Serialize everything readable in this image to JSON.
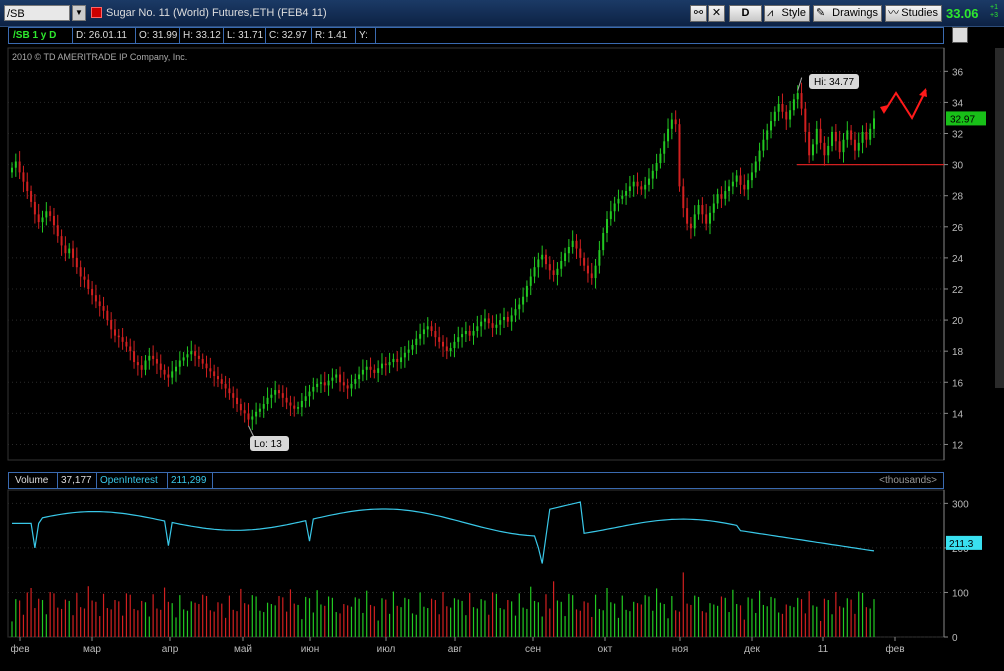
{
  "topbar": {
    "symbol": "/SB",
    "description": "Sugar No. 11 (World)  Futures,ETH (FEB4 11)",
    "period_button": "D",
    "style_label": "Style",
    "drawings_label": "Drawings",
    "studies_label": "Studies",
    "last_price": "33.06",
    "change_top": "+1",
    "change_bottom": "+3",
    "colors": {
      "price": "#2ee82e",
      "bar": "#1b3a66"
    }
  },
  "infobar": {
    "symbol_period": "/SB 1 y D",
    "date": "D: 26.01.11",
    "open": "O: 31.99",
    "high": "H: 33.12",
    "low": "L: 31.71",
    "close": "C: 32.97",
    "range": "R: 1.41",
    "y": "Y:"
  },
  "copyright": "2010 © TD AMERITRADE IP Company, Inc.",
  "volume_bar": {
    "volume_label": "Volume",
    "volume_value": "37,177",
    "oi_label": "OpenInterest",
    "oi_value": "211,299",
    "units": "<thousands>"
  },
  "chart_data": [
    {
      "type": "candlestick",
      "ylim": [
        11,
        37.5
      ],
      "y_ticks": [
        "12",
        "14",
        "16",
        "18",
        "20",
        "22",
        "24",
        "26",
        "28",
        "30",
        "32",
        "34",
        "36"
      ],
      "x_ticks": [
        "фев",
        "мар",
        "апр",
        "май",
        "июн",
        "июл",
        "авг",
        "сен",
        "окт",
        "ноя",
        "дек",
        "11",
        "фев"
      ],
      "hi_label": "Hi: 34.77",
      "lo_label": "Lo: 13",
      "price_badge": "32.97",
      "horizontal_line": 30,
      "closes": [
        29.8,
        30.2,
        29.5,
        28.9,
        28.3,
        27.6,
        26.8,
        26.3,
        26.6,
        27.0,
        26.7,
        26.1,
        25.4,
        24.8,
        24.3,
        24.6,
        24.0,
        23.4,
        22.8,
        22.6,
        22.0,
        21.6,
        21.2,
        20.9,
        20.6,
        20.0,
        19.4,
        19.0,
        18.9,
        18.6,
        18.3,
        18.0,
        17.3,
        17.1,
        16.8,
        17.4,
        17.7,
        17.5,
        17.2,
        16.8,
        16.5,
        16.3,
        16.7,
        17.0,
        17.4,
        17.6,
        17.8,
        18.0,
        17.7,
        17.5,
        17.2,
        16.9,
        16.7,
        16.4,
        16.2,
        15.9,
        15.6,
        15.3,
        15.0,
        14.6,
        14.2,
        14.0,
        13.6,
        13.8,
        14.1,
        14.3,
        14.6,
        15.0,
        15.2,
        15.5,
        15.3,
        15.0,
        14.7,
        14.5,
        14.3,
        14.4,
        14.8,
        15.1,
        15.4,
        15.7,
        15.9,
        16.0,
        15.8,
        16.1,
        16.3,
        16.5,
        16.0,
        15.8,
        15.6,
        15.9,
        16.2,
        16.5,
        16.8,
        17.0,
        16.8,
        16.6,
        16.9,
        17.2,
        17.1,
        17.3,
        17.5,
        17.3,
        17.6,
        17.9,
        18.1,
        18.4,
        18.8,
        19.1,
        19.4,
        19.6,
        19.3,
        18.9,
        18.6,
        18.3,
        18.0,
        18.2,
        18.6,
        18.9,
        19.1,
        19.3,
        19.0,
        19.3,
        19.6,
        19.9,
        20.1,
        19.8,
        19.5,
        19.7,
        20.0,
        20.2,
        19.9,
        20.3,
        20.7,
        21.0,
        21.5,
        22.2,
        22.8,
        23.4,
        23.9,
        24.2,
        23.6,
        23.2,
        22.9,
        23.3,
        23.8,
        24.3,
        24.7,
        25.1,
        24.6,
        24.0,
        23.5,
        23.0,
        22.7,
        23.5,
        24.5,
        25.6,
        26.5,
        27.0,
        27.5,
        27.8,
        28.0,
        28.3,
        28.6,
        28.9,
        28.6,
        28.4,
        28.7,
        29.1,
        29.6,
        30.1,
        30.7,
        31.5,
        32.3,
        32.9,
        32.6,
        28.6,
        27.2,
        26.2,
        25.9,
        26.8,
        27.4,
        26.8,
        26.2,
        26.9,
        27.5,
        28.1,
        27.8,
        28.3,
        28.6,
        28.9,
        29.3,
        28.7,
        28.4,
        29.0,
        29.5,
        30.2,
        30.9,
        31.6,
        32.2,
        32.8,
        33.4,
        33.9,
        33.4,
        32.9,
        33.5,
        34.2,
        34.6,
        33.6,
        32.1,
        30.6,
        31.3,
        32.3,
        31.4,
        30.6,
        31.2,
        32.1,
        31.5,
        30.8,
        31.6,
        32.2,
        31.6,
        30.9,
        31.4,
        32.1,
        31.6,
        32.3,
        32.97
      ]
    },
    {
      "type": "line",
      "series_name": "OpenInterest",
      "ylim": [
        0,
        330
      ],
      "y_ticks": [
        "0",
        "100",
        "200",
        "300"
      ],
      "oi_badge": "211.3"
    }
  ]
}
